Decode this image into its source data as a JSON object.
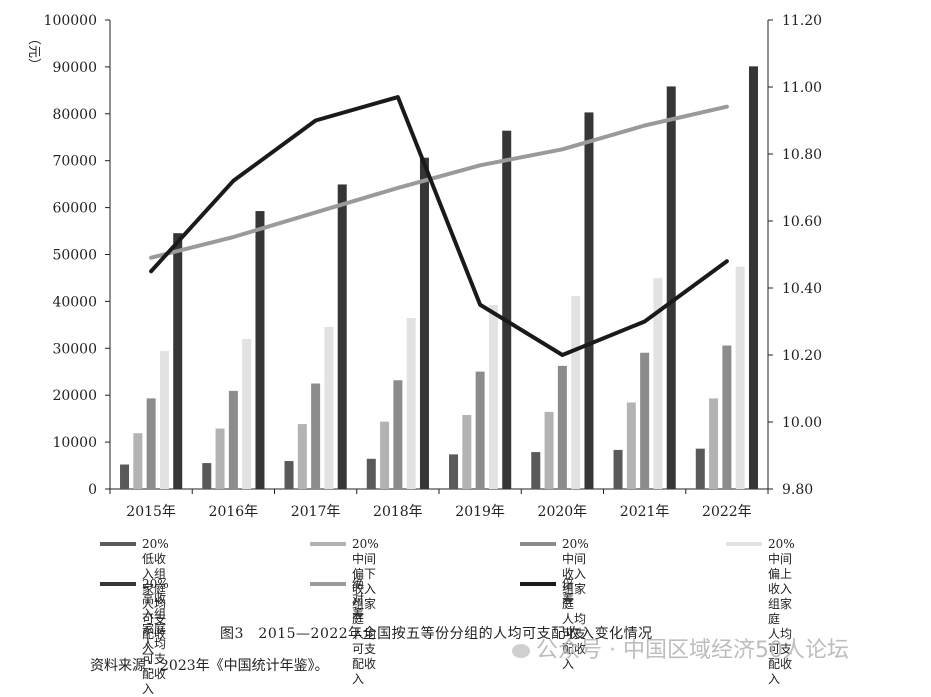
{
  "chart_data": {
    "type": "bar",
    "title": "图3　2015—2022年全国按五等份分组的人均可支配收入变化情况",
    "ylabel_left": "（元）",
    "categories": [
      "2015年",
      "2016年",
      "2017年",
      "2018年",
      "2019年",
      "2020年",
      "2021年",
      "2022年"
    ],
    "ylim_left": [
      0,
      100000
    ],
    "yticks_left": [
      "0",
      "10000",
      "20000",
      "30000",
      "40000",
      "50000",
      "60000",
      "70000",
      "80000",
      "90000",
      "100000"
    ],
    "ylim_right": [
      9.8,
      11.2
    ],
    "yticks_right": [
      "9.80",
      "10.00",
      "10.20",
      "10.40",
      "10.60",
      "10.80",
      "11.00",
      "11.20"
    ],
    "series": [
      {
        "name": "20%低收入组家庭人均可支配收入",
        "label": "20%低收入组家庭\n人均可支配收入",
        "type": "bar",
        "axis": "left",
        "color": "#5a5a5a",
        "values": [
          5221,
          5529,
          5958,
          6440,
          7380,
          7869,
          8333,
          8601
        ]
      },
      {
        "name": "20%中间偏下收入组家庭人均可支配收入",
        "label": "20%中间偏下收入组家庭\n人均可支配收入",
        "type": "bar",
        "axis": "left",
        "color": "#b3b3b3",
        "values": [
          11894,
          12899,
          13843,
          14361,
          15777,
          16443,
          18446,
          19303
        ]
      },
      {
        "name": "20%中间收入组家庭人均可支配收入",
        "label": "20%中间收入组家庭\n人均可支配收入",
        "type": "bar",
        "axis": "left",
        "color": "#8c8c8c",
        "values": [
          19320,
          20924,
          22495,
          23189,
          25035,
          26249,
          29053,
          30598
        ]
      },
      {
        "name": "20%中间偏上收入组家庭人均可支配收入",
        "label": "20%中间偏上收入组家庭\n人均可支配收入",
        "type": "bar",
        "axis": "left",
        "color": "#e2e2e2",
        "values": [
          29438,
          31990,
          34547,
          36471,
          39230,
          41172,
          44949,
          47397
        ]
      },
      {
        "name": "20%高收入组家庭人均可支配收入",
        "label": "20%高收入组家庭\n人均可支配收入",
        "type": "bar",
        "axis": "left",
        "color": "#363636",
        "values": [
          54544,
          59259,
          64934,
          70640,
          76401,
          80294,
          85836,
          90116
        ]
      },
      {
        "name": "绝对差",
        "label": "绝对差",
        "type": "line",
        "axis": "left",
        "color": "#9a9a9a",
        "values": [
          49323,
          53730,
          58976,
          64200,
          69021,
          72425,
          77503,
          81515
        ]
      },
      {
        "name": "倍差",
        "label": "倍差",
        "type": "line",
        "axis": "right",
        "color": "#1a1a1a",
        "values": [
          10.45,
          10.72,
          10.9,
          10.97,
          10.35,
          10.2,
          10.3,
          10.48
        ]
      }
    ]
  },
  "caption": "图3　2015—2022年全国按五等份分组的人均可支配收入变化情况",
  "source": "资料来源：2023年《中国统计年鉴》。",
  "watermark": "公众号 · 中国区域经济50人论坛"
}
